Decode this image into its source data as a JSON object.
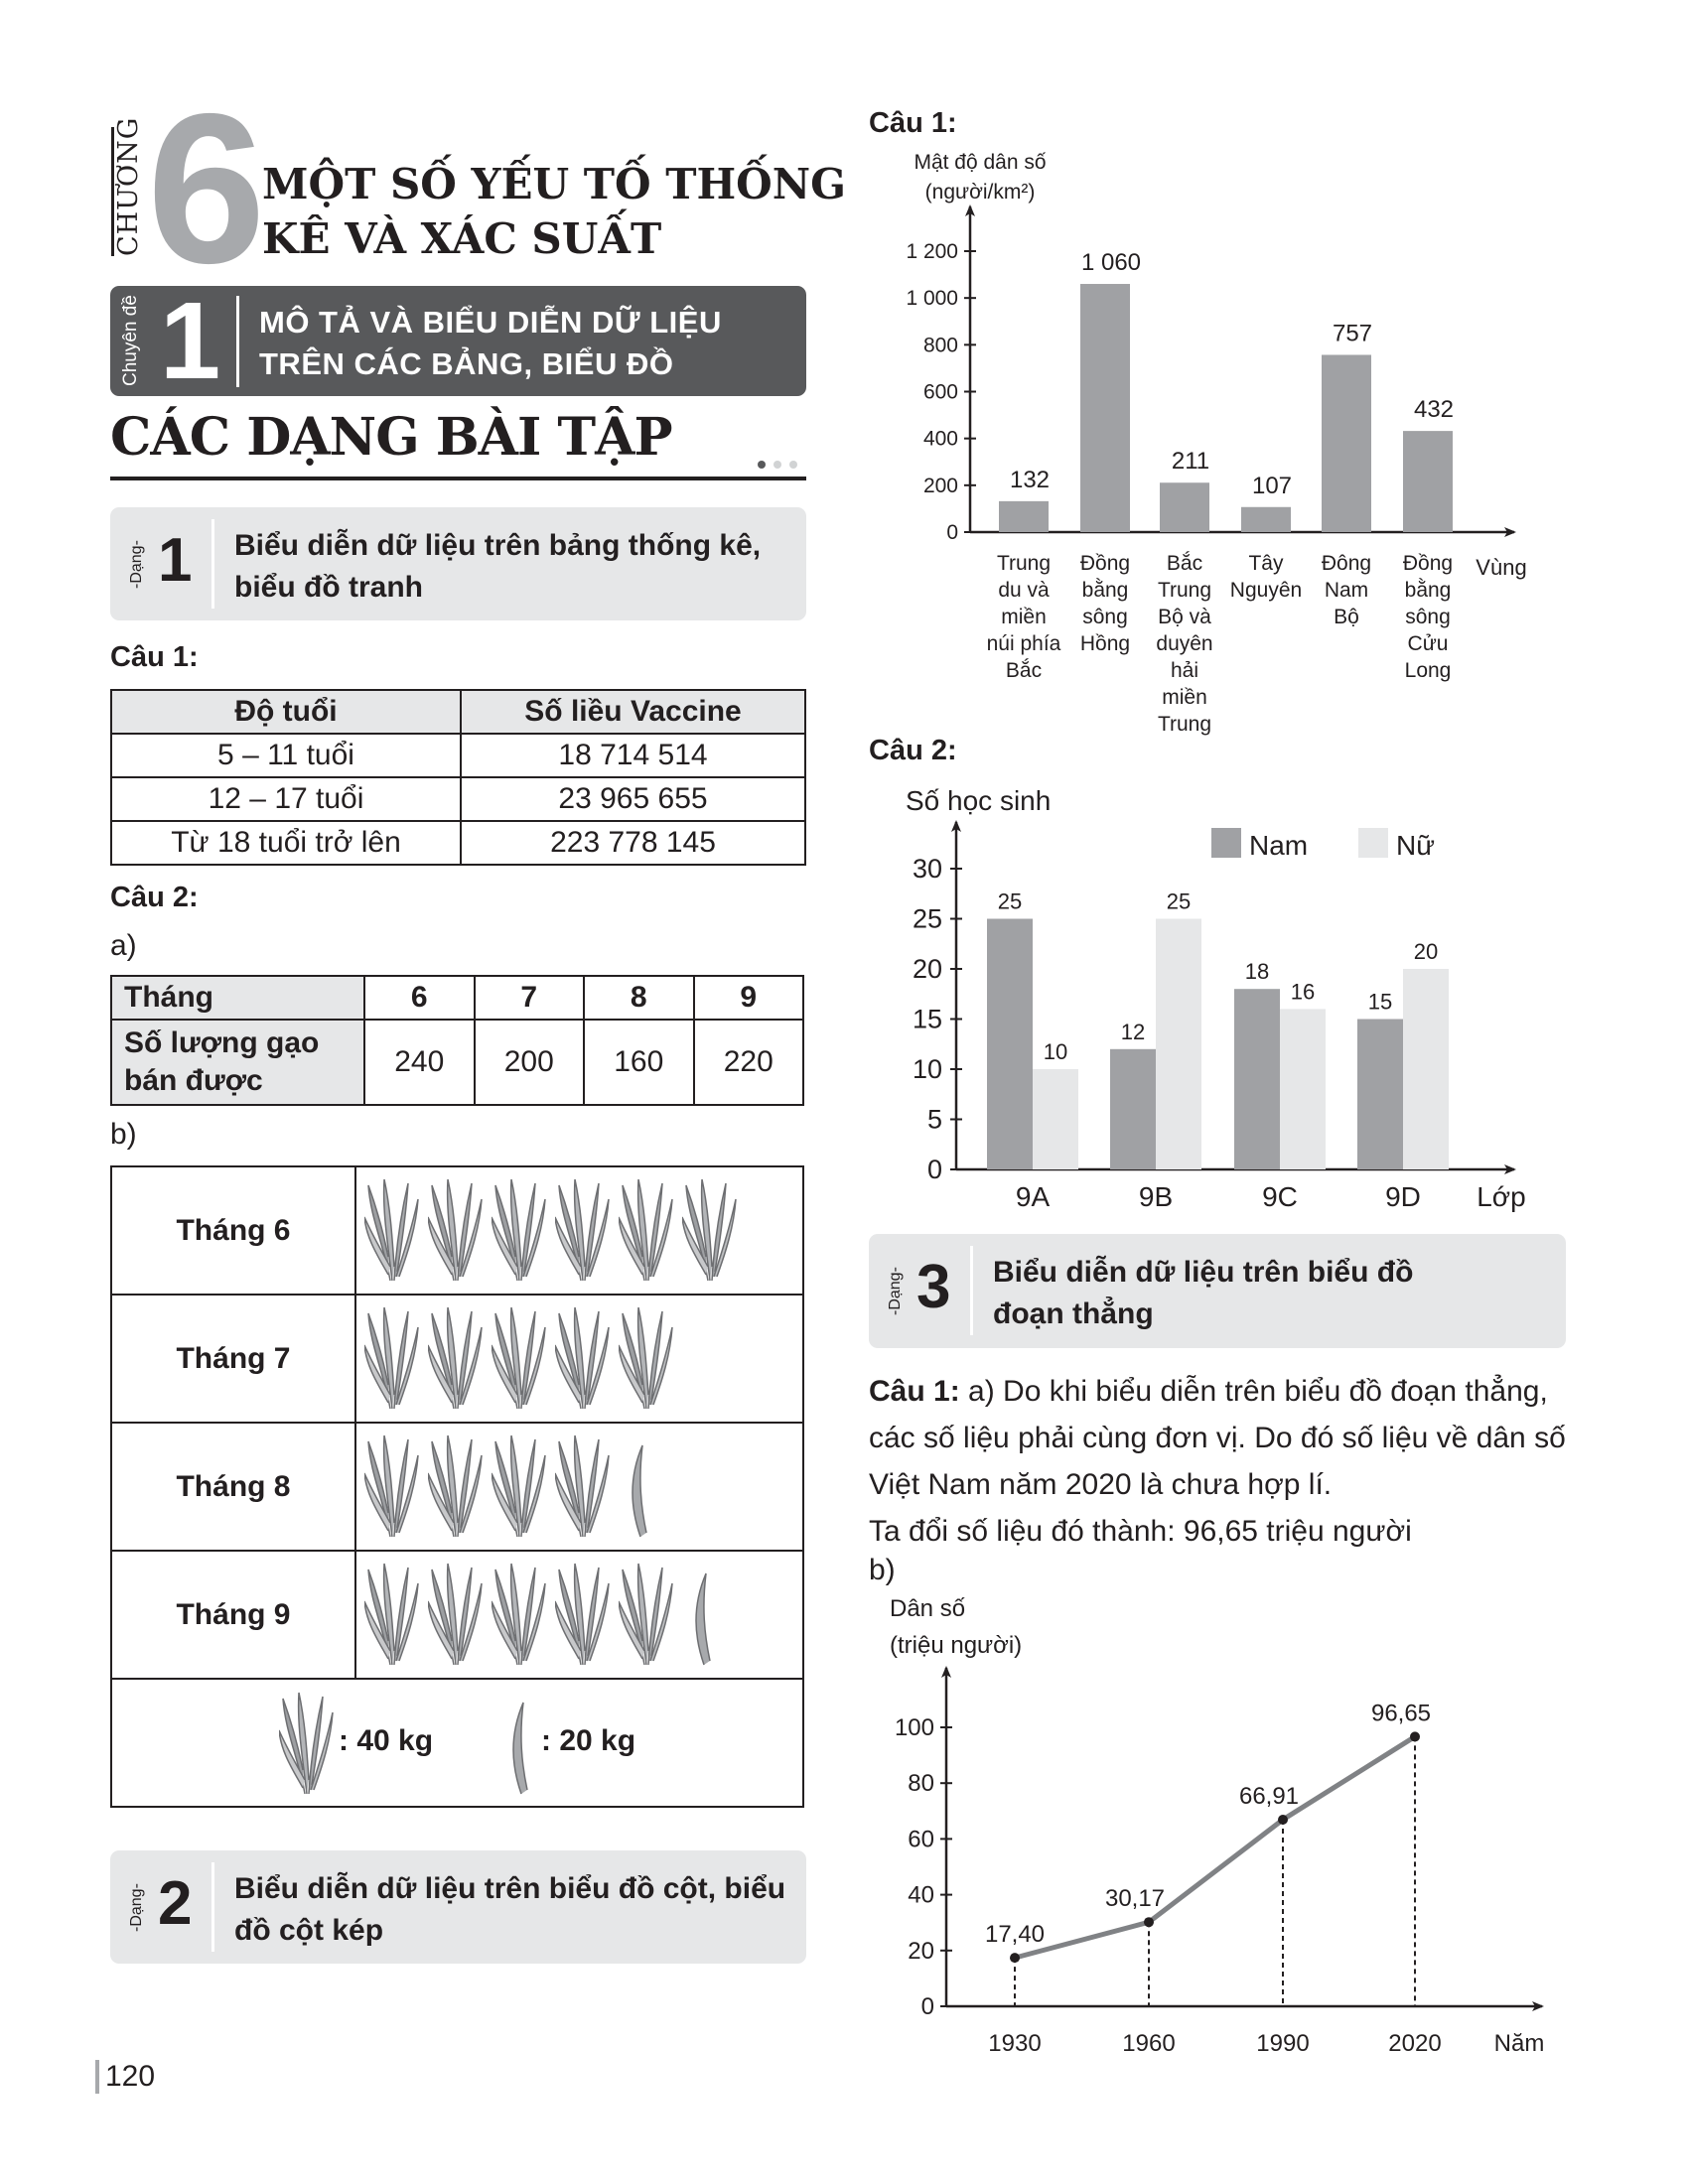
{
  "chapter": {
    "label": "CHƯƠNG",
    "number": "6",
    "title_lines": [
      "MỘT SỐ YẾU TỐ THỐNG",
      "KÊ VÀ XÁC SUẤT"
    ]
  },
  "topic": {
    "label": "Chuyên đề",
    "number": "1",
    "title_lines": [
      "MÔ TẢ VÀ BIỂU DIỄN DỮ LIỆU",
      "TRÊN CÁC BẢNG, BIỂU ĐỒ"
    ]
  },
  "section_title": "CÁC DẠNG BÀI TẬP",
  "dang": [
    {
      "label": "-Dạng-",
      "number": "1",
      "title_lines": [
        "Biểu diễn dữ liệu trên bảng thống kê,",
        "biểu đồ tranh"
      ]
    },
    {
      "label": "-Dạng-",
      "number": "2",
      "title_lines": [
        "Biểu diễn dữ liệu trên biểu đồ cột, biểu",
        "đồ cột kép"
      ]
    },
    {
      "label": "-Dạng-",
      "number": "3",
      "title_lines": [
        "Biểu diễn dữ liệu trên biểu đồ",
        "đoạn thẳng"
      ]
    }
  ],
  "left": {
    "cau1": "Câu 1:",
    "table1": {
      "headers": [
        "Độ tuổi",
        "Số liều Vaccine"
      ],
      "rows": [
        [
          "5 – 11 tuổi",
          "18 714 514"
        ],
        [
          "12 – 17 tuổi",
          "23 965 655"
        ],
        [
          "Từ 18 tuổi trở lên",
          "223 778 145"
        ]
      ]
    },
    "cau2": "Câu 2:",
    "a": "a)",
    "table2": {
      "row1_label": "Tháng",
      "months": [
        "6",
        "7",
        "8",
        "9"
      ],
      "row2_label_lines": [
        "Số lượng gạo",
        "bán được"
      ],
      "values": [
        "240",
        "200",
        "160",
        "220"
      ]
    },
    "b": "b)",
    "pictograph": {
      "rows": [
        {
          "label": "Tháng 6",
          "full": 6,
          "half": 0
        },
        {
          "label": "Tháng 7",
          "full": 5,
          "half": 0
        },
        {
          "label": "Tháng 8",
          "full": 4,
          "half": 1
        },
        {
          "label": "Tháng 9",
          "full": 5,
          "half": 1
        }
      ],
      "legend_full": ": 40 kg",
      "legend_half": ": 20 kg",
      "icon": "rice-bundle-icon"
    }
  },
  "right": {
    "cau1": "Câu 1:",
    "cau2": "Câu 2:",
    "cau3_label": "Câu 1:",
    "para_lines": [
      " a) Do khi biểu diễn trên biểu đồ đoạn thẳng,",
      "các số liệu phải cùng đơn vị. Do đó số liệu về dân số",
      "Việt Nam năm 2020 là chưa hợp lí.",
      "Ta đổi số liệu đó thành: 96,65 triệu người"
    ],
    "b": "b)"
  },
  "page_number": "120",
  "chart_data": [
    {
      "type": "bar",
      "ylabel_lines": [
        "Mật độ dân số",
        "(người/km²)"
      ],
      "xlabel": "Vùng",
      "categories": [
        [
          "Trung",
          "du và",
          "miền",
          "núi phía",
          "Bắc"
        ],
        [
          "Đồng",
          "bằng",
          "sông",
          "Hồng"
        ],
        [
          "Bắc",
          "Trung",
          "Bộ và",
          "duyên",
          "hải",
          "miền",
          "Trung"
        ],
        [
          "Tây",
          "Nguyên"
        ],
        [
          "Đông",
          "Nam",
          "Bộ"
        ],
        [
          "Đồng",
          "bằng",
          "sông",
          "Cửu",
          "Long"
        ]
      ],
      "values": [
        132,
        1060,
        211,
        107,
        757,
        432
      ],
      "value_labels": [
        "132",
        "1 060",
        "211",
        "107",
        "757",
        "432"
      ],
      "yticks": [
        "0",
        "200",
        "400",
        "600",
        "800",
        "1 000",
        "1 200"
      ],
      "ylim": [
        0,
        1200
      ],
      "bar_color": "#a0a1a4"
    },
    {
      "type": "bar",
      "ylabel": "Số học sinh",
      "xlabel": "Lớp",
      "categories": [
        "9A",
        "9B",
        "9C",
        "9D"
      ],
      "series": [
        {
          "name": "Nam",
          "values": [
            25,
            12,
            18,
            15
          ],
          "color": "#a0a1a4"
        },
        {
          "name": "Nữ",
          "values": [
            10,
            25,
            16,
            20
          ],
          "color": "#e6e7e8"
        }
      ],
      "yticks": [
        "0",
        "5",
        "10",
        "15",
        "20",
        "25",
        "30"
      ],
      "ylim": [
        0,
        30
      ],
      "legend": "top-right"
    },
    {
      "type": "line",
      "ylabel_lines": [
        "Dân số",
        "(triệu người)"
      ],
      "xlabel": "Năm",
      "x": [
        "1930",
        "1960",
        "1990",
        "2020"
      ],
      "y": [
        17.4,
        30.17,
        66.91,
        96.65
      ],
      "point_labels": [
        "17,40",
        "30,17",
        "66,91",
        "96,65"
      ],
      "yticks": [
        "0",
        "20",
        "40",
        "60",
        "80",
        "100"
      ],
      "ylim": [
        0,
        100
      ],
      "line_color": "#808285"
    }
  ]
}
